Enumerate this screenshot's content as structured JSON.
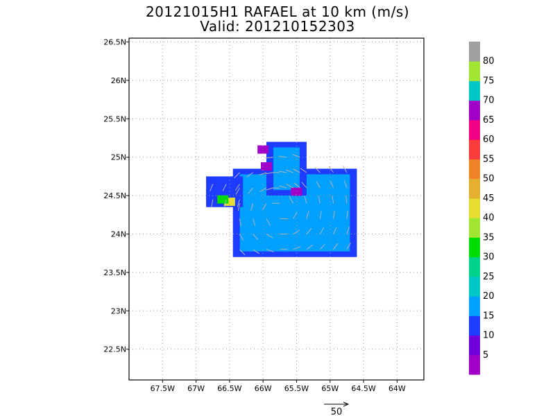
{
  "chart_data": {
    "type": "heatmap",
    "title": "20121015H1 RAFAEL at 10 km (m/s)",
    "subtitle": "Valid: 201210152303",
    "xlabel": "",
    "ylabel": "",
    "xlim": [
      -68.0,
      -63.6
    ],
    "ylim": [
      22.1,
      26.55
    ],
    "x_ticks": [
      -67.5,
      -67.0,
      -66.5,
      -66.0,
      -65.5,
      -65.0,
      -64.5,
      -64.0
    ],
    "x_tick_labels": [
      "67.5W",
      "67W",
      "66.5W",
      "66W",
      "65.5W",
      "65W",
      "64.5W",
      "64W"
    ],
    "y_ticks": [
      22.5,
      23.0,
      23.5,
      24.0,
      24.5,
      25.0,
      25.5,
      26.0,
      26.5
    ],
    "y_tick_labels": [
      "22.5N",
      "23N",
      "23.5N",
      "24N",
      "24.5N",
      "25N",
      "25.5N",
      "26N",
      "26.5N"
    ],
    "grid": true,
    "colorbar": {
      "labels": [
        "5",
        "10",
        "15",
        "20",
        "25",
        "30",
        "35",
        "40",
        "45",
        "50",
        "55",
        "60",
        "65",
        "70",
        "75",
        "80"
      ],
      "colors": [
        "#a000c8",
        "#6e00dc",
        "#1e3cff",
        "#00a0ff",
        "#00c8c8",
        "#00d28c",
        "#00dc00",
        "#a0e632",
        "#e6dc32",
        "#e6af2d",
        "#f08228",
        "#fa3c3c",
        "#f00082",
        "#a000c8",
        "#00c8c8",
        "#a0e632",
        "#a0a0a0"
      ]
    },
    "wind_field": {
      "description_units": "m/s",
      "regions": [
        {
          "name": "main",
          "lon": [
            -66.45,
            -64.6
          ],
          "lat": [
            23.7,
            24.85
          ],
          "value": 20
        },
        {
          "name": "northern-lobe",
          "lon": [
            -65.95,
            -65.35
          ],
          "lat": [
            24.5,
            25.2
          ],
          "value": 20
        },
        {
          "name": "western-arm",
          "lon": [
            -66.85,
            -66.3
          ],
          "lat": [
            24.35,
            24.75
          ],
          "value": 15
        }
      ],
      "cells": [
        {
          "lon": -66.5,
          "lat": 24.42,
          "value": 45
        },
        {
          "lon": -66.6,
          "lat": 24.45,
          "value": 35
        },
        {
          "lon": -65.95,
          "lat": 24.88,
          "value": 5
        },
        {
          "lon": -65.5,
          "lat": 24.55,
          "value": 5
        },
        {
          "lon": -66.0,
          "lat": 25.1,
          "value": 5
        }
      ]
    },
    "reference_vector": {
      "label": "50"
    }
  }
}
